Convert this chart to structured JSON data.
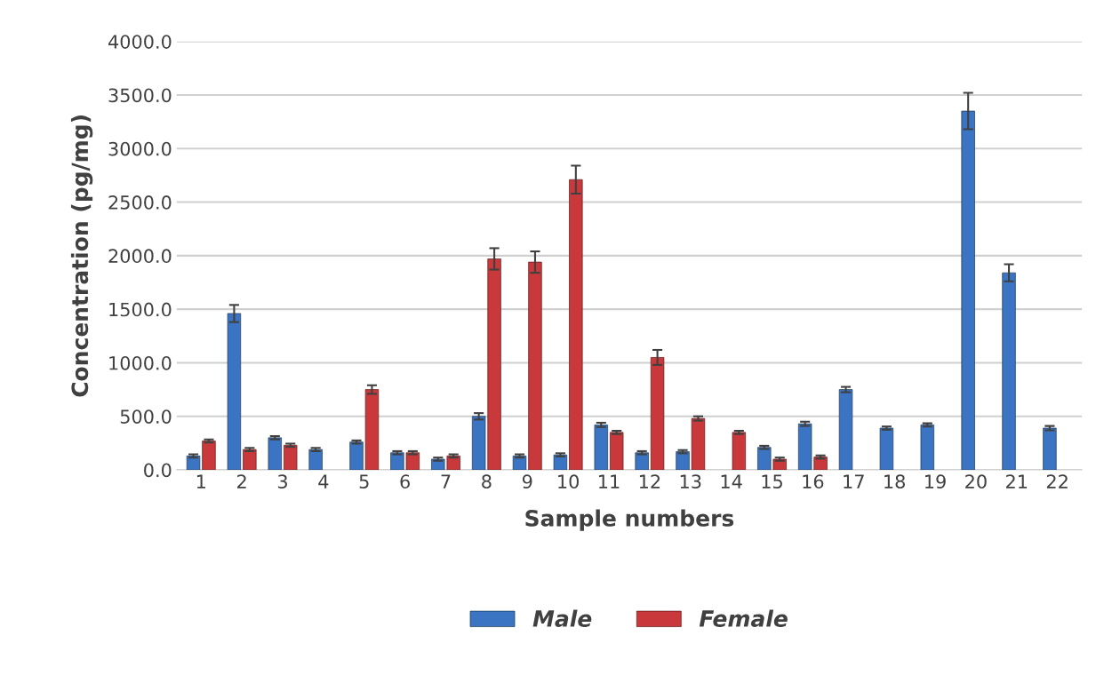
{
  "chart_data": {
    "type": "bar",
    "xlabel": "Sample numbers",
    "ylabel": "Concentration (pg/mg)",
    "categories": [
      "1",
      "2",
      "3",
      "4",
      "5",
      "6",
      "7",
      "8",
      "9",
      "10",
      "11",
      "12",
      "13",
      "14",
      "15",
      "16",
      "17",
      "18",
      "19",
      "20",
      "21",
      "22"
    ],
    "series": [
      {
        "name": "Male",
        "color": "#3a74c2",
        "values": [
          130,
          1460,
          300,
          190,
          260,
          160,
          100,
          500,
          130,
          140,
          420,
          160,
          170,
          null,
          210,
          430,
          750,
          390,
          420,
          3350,
          1840,
          390
        ],
        "errors": [
          15,
          80,
          15,
          15,
          15,
          15,
          15,
          30,
          15,
          15,
          20,
          15,
          15,
          null,
          15,
          20,
          25,
          15,
          15,
          170,
          80,
          20
        ]
      },
      {
        "name": "Female",
        "color": "#c9383a",
        "values": [
          270,
          190,
          230,
          null,
          750,
          160,
          130,
          1970,
          1940,
          2710,
          350,
          1050,
          480,
          350,
          100,
          120,
          null,
          null,
          null,
          null,
          null,
          null
        ],
        "errors": [
          15,
          15,
          15,
          null,
          40,
          15,
          15,
          100,
          100,
          130,
          15,
          70,
          20,
          15,
          15,
          15,
          null,
          null,
          null,
          null,
          null,
          null
        ]
      }
    ],
    "ylim": [
      0,
      4000
    ],
    "yticks": [
      {
        "value": 0,
        "label": "0.0"
      },
      {
        "value": 500,
        "label": "500.0"
      },
      {
        "value": 1000,
        "label": "1000.0"
      },
      {
        "value": 1500,
        "label": "1500.0"
      },
      {
        "value": 2000,
        "label": "2000.0"
      },
      {
        "value": 2500,
        "label": "2500.0"
      },
      {
        "value": 3000,
        "label": "3000.0"
      },
      {
        "value": 3500,
        "label": "3500.0"
      },
      {
        "value": 4000,
        "label": "4000.0"
      }
    ],
    "grid": "y",
    "legend": "bottom"
  }
}
